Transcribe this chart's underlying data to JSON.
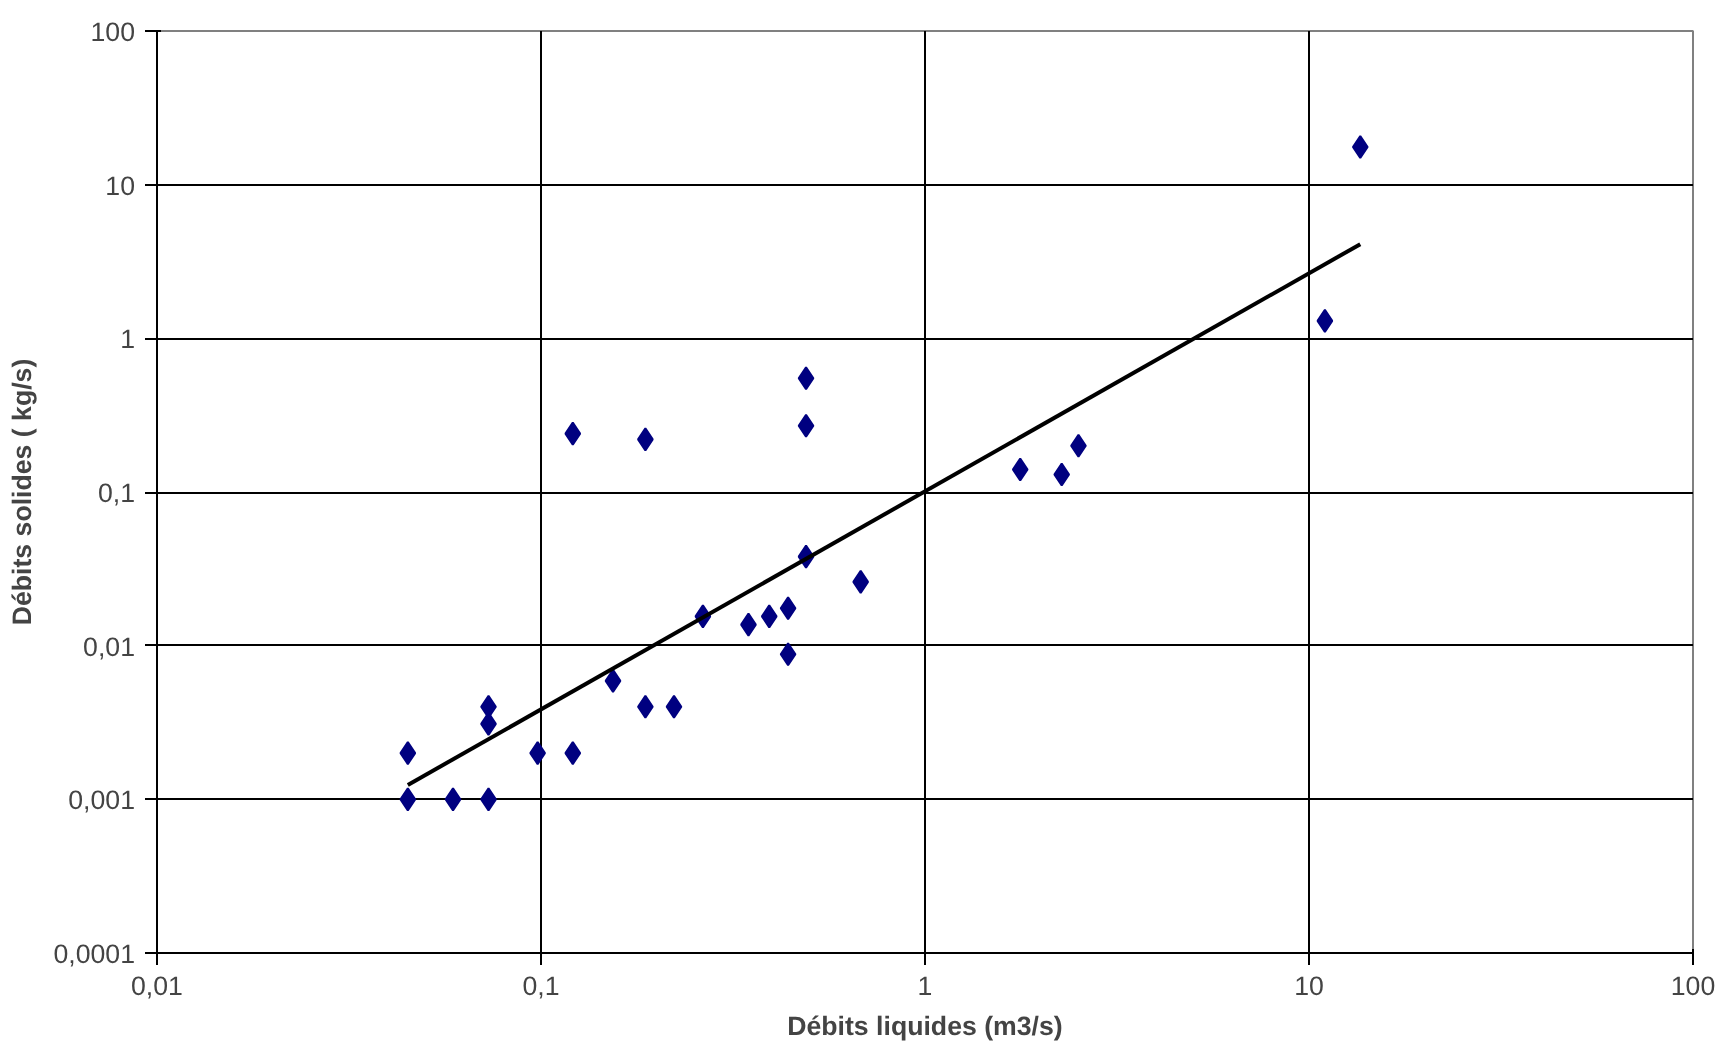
{
  "chart_data": {
    "type": "scatter",
    "xlabel": "Débits liquides (m3/s)",
    "ylabel": "Débits solides ( kg/s)",
    "log": "xy",
    "grid": true,
    "xlim": [
      0.01,
      100
    ],
    "xticks": [
      {
        "value": 0.01,
        "label": "0,01"
      },
      {
        "value": 0.1,
        "label": "0,1"
      },
      {
        "value": 1,
        "label": "1"
      },
      {
        "value": 10,
        "label": "10"
      },
      {
        "value": 100,
        "label": "100"
      }
    ],
    "ylim": [
      0.0001,
      100
    ],
    "yticks": [
      {
        "value": 0.0001,
        "label": "0,0001"
      },
      {
        "value": 0.001,
        "label": "0,001"
      },
      {
        "value": 0.01,
        "label": "0,01"
      },
      {
        "value": 0.1,
        "label": "0,1"
      },
      {
        "value": 1,
        "label": "1"
      },
      {
        "value": 10,
        "label": "10"
      },
      {
        "value": 100,
        "label": "100"
      }
    ],
    "series": [
      {
        "marker": "diamond",
        "color": "#000080",
        "x": [
          0.045,
          0.045,
          0.059,
          0.073,
          0.073,
          0.073,
          0.098,
          0.121,
          0.121,
          0.154,
          0.187,
          0.187,
          0.222,
          0.264,
          0.347,
          0.393,
          0.44,
          0.44,
          0.49,
          0.49,
          0.49,
          0.68,
          1.77,
          2.27,
          2.51,
          11.0,
          13.6
        ],
        "values": [
          0.002,
          0.001,
          0.001,
          0.004,
          0.0031,
          0.001,
          0.002,
          0.24,
          0.002,
          0.0059,
          0.22,
          0.004,
          0.004,
          0.0155,
          0.0137,
          0.0155,
          0.0175,
          0.0088,
          0.55,
          0.27,
          0.038,
          0.026,
          0.14,
          0.13,
          0.2,
          1.3,
          17.6
        ]
      },
      {
        "type": "line",
        "color": "#000000",
        "x": [
          0.045,
          13.6
        ],
        "values": [
          0.00124,
          4.1
        ]
      }
    ]
  }
}
